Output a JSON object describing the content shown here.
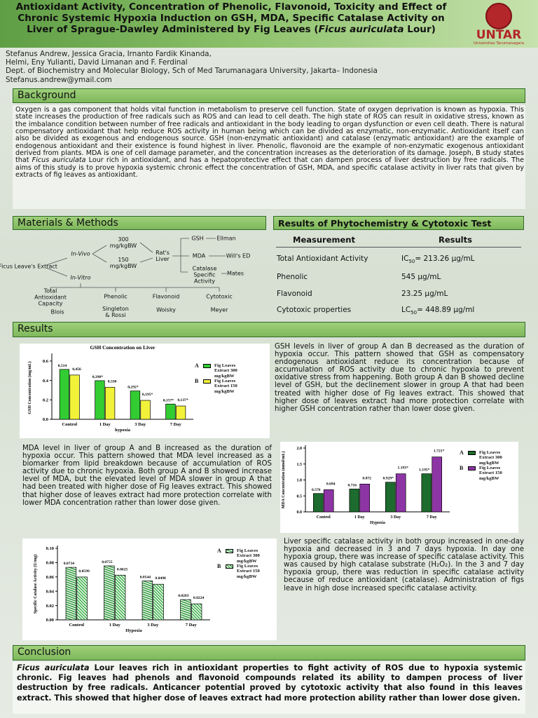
{
  "header": {
    "title_start": "Antioxidant Activity, Concentration of Phenolic, Flavonoid, Toxicity and Effect of Chronic Systemic Hypoxia Induction on GSH, MDA, Specific Catalase Activity on Liver of Sprague-Dawley Administered by Fig Leaves (",
    "title_italic": "Ficus auriculata",
    "title_end": " Lour)",
    "logo_name": "UNTAR",
    "logo_sub": "Universitas Tarumanagara"
  },
  "authors": [
    "Stefanus Andrew, Jessica Gracia, Irnanto Fardik Kinanda,",
    "Helmi, Eny Yulianti, David Limanan and F. Ferdinal",
    "Dept. of Biochemistry and Molecular Biology, Sch of Med Tarumanagara University, Jakarta– Indonesia",
    "Stefanus.andrew@ymail.com"
  ],
  "background": {
    "heading": "Background",
    "text_1": "Oxygen is a gas component that holds vital function in metabolism to preserve cell function. State of oxygen deprivation is known as hypoxia. This state increases the production of free radicals such as ROS and can lead to cell death. The high state of ROS can result in oxidative stress, known as the imbalance condition between number of free radicals and antioxidant in the body leading to organ dysfunction or even cell death. There is natural compensatory antioxidant that help reduce ROS activity in human being which can be divided as enzymatic, non-enzymatic. Antioxidant itself can also be divided as exogenous and endogenous source. GSH (non-enzymatic antioxidant) and catalase (enzymatic antioxidant) are the example of endogenous antioxidant and their existence is found highest in liver. Phenolic, flavonoid are the example of non-enzymatic exogenous antioxidant derived from plants. MDA is one of cell damage parameter, and the concentration increases as the deterioration of its damage. Joseph, B study states that ",
    "italic": "Ficus auriculata",
    "text_2": " Lour rich in antioxidant, and has a hepatoprotective effect that can dampen process of liver destruction by free radicals. The aims of this study is to prove hypoxia systemic chronic effect the concentration of GSH, MDA, and specific catalase activity in liver rats that given by extracts of fig leaves as antioxidant."
  },
  "methods": {
    "heading": "Materials & Methods",
    "nodes": [
      "Ficus Leave's Extract",
      "In-Vivo",
      "In-Vitro",
      "300 mg/kgBW",
      "150 mg/kgBW",
      "Rat's Liver",
      "GSH",
      "Ellman",
      "MDA",
      "Will's ED",
      "Catalase Specific Activity",
      "Mates",
      "Total Antioxidant Capacity",
      "Phenolic",
      "Flavonoid",
      "Cytotoxic",
      "Blois",
      "Singleton & Rossi",
      "Woisky",
      "Meyer"
    ]
  },
  "phytochemistry": {
    "heading": "Results of Phytochemistry & Cytotoxic Test",
    "columns": [
      "Measurement",
      "Results"
    ],
    "rows": [
      {
        "measurement": "Total Antioxidant Activity",
        "result": "IC",
        "sub": "50",
        "result_end": "= 213.26 µg/mL"
      },
      {
        "measurement": "Phenolic",
        "result": "545 µg/mL"
      },
      {
        "measurement": "Flavonoid",
        "result": "23.25 µg/mL"
      },
      {
        "measurement": "Cytotoxic properties",
        "result": "LC",
        "sub": "50",
        "result_end": "= 448.89 µg/ml"
      }
    ]
  },
  "results": {
    "heading": "Results",
    "texts": [
      "GSH levels in liver of group A dan B decreased as the duration of hypoxia occur. This pattern showed that GSH as compensatory endogenous antioxidant reduce its concentration because of accumulation of ROS activity due to chronic hypoxia to prevent oxidative stress from happening. Both group A dan B showed decline level of GSH, but the declinement slower in group A that had been treated with higher dose of Fig leaves extract. This showed that higher dose of leaves extract had more protection correlate with higher GSH concentration rather than lower dose given.",
      "MDA level in liver of group A and B increased as the duration of hypoxia occur. This pattern showed that MDA level increased as a biomarker from lipid breakdown because of accumulation of ROS activity due to chronic hypoxia. Both group A and B showed increase level of MDA, but the elevated level of MDA slower in group A that had been treated with higher dose of Fig leaves extract. This showed that higher dose of leaves extract had more protection correlate with lower MDA concentration rather than lower dose given.",
      "Liver specific catalase activity in both group increased in one-day hypoxia and decreased in 3 and 7 days hypoxia. In day one hypoxia group, there was increase of specific catalase activity. This was caused by high catalase substrate (H₂O₂). In the 3 and 7 day hypoxia group, there was reduction in specific catalase activity because of reduce antioxidant (catalase). Administration of figs leave in high dose increased specific catalase activity."
    ],
    "charts": [
      {
        "type": "bar",
        "title": "GSH Concentration on Liver",
        "y_label": "GSH Concentration (mg/mL)",
        "x_label": "hypoxia",
        "categories": [
          "Control",
          "1 Day",
          "3 Day",
          "7 Day"
        ],
        "ylim": [
          0,
          0.65
        ],
        "yticks": [
          {
            "value": 0,
            "label": "0.0"
          },
          0.2,
          0.4,
          0.6
        ],
        "legend_keys": [
          "A",
          "B"
        ],
        "series": [
          {
            "name": "Fig Leaves Extract 300 mg/kgBW",
            "color": "#33cc33",
            "values": [
              0.514,
              0.398,
              0.292,
              0.157
            ],
            "value_labels": [
              "0,514",
              "0,398*",
              "0,292*",
              "0,157*"
            ]
          },
          {
            "name": "Fig Leaves Extract 150 mg/kgBW",
            "color": "#f2f23a",
            "values": [
              0.456,
              0.33,
              0.195,
              0.137
            ],
            "value_labels": [
              "0,456",
              "0,330",
              "0,195*",
              "0,137*"
            ]
          }
        ]
      },
      {
        "type": "bar",
        "y_label": "MDA Concentration (nmol/mL)",
        "x_label": "Hypoxia",
        "categories": [
          "Control",
          "1 Day",
          "3 Day",
          "7 Day"
        ],
        "ylim": [
          0,
          2.0
        ],
        "yticks": [
          {
            "value": 0,
            "label": "0.0"
          },
          0.5,
          {
            "value": 1,
            "label": "1.0"
          },
          1.5,
          {
            "value": 2,
            "label": "2.0"
          }
        ],
        "legend_keys": [
          "A",
          "B"
        ],
        "series": [
          {
            "name": "Fig Leaves Extract 300 mg/kgBW",
            "color": "#1d6b2e",
            "values": [
              0.576,
              0.716,
              0.929,
              1.195
            ],
            "value_labels": [
              "0.576",
              "0.716",
              "0.929*",
              "1.195*"
            ]
          },
          {
            "name": "Fig Leaves Extract 150 mg/kgBW",
            "color": "#8e35a6",
            "values": [
              0.694,
              0.872,
              1.193,
              1.721
            ],
            "value_labels": [
              "0.694",
              "0.872",
              "1.193*",
              "1.721*"
            ]
          }
        ]
      },
      {
        "type": "bar",
        "y_label": "Specific Catalase Activity (U/mg)",
        "x_label": "Hypoxia",
        "categories": [
          "Control",
          "1 Day",
          "3 Day",
          "7 Day"
        ],
        "ylim": [
          0,
          0.1
        ],
        "yticks": [
          {
            "value": 0,
            "label": "0.00"
          },
          0.02,
          0.04,
          0.06,
          0.08,
          {
            "value": 0.1,
            "label": "0.10"
          }
        ],
        "legend_keys": [
          "A",
          "B"
        ],
        "hatched": true,
        "series": [
          {
            "name": "Fig Leaves Extract 300 mg/kgBW",
            "color": "#2f9a3c",
            "values": [
              0.0734,
              0.0755,
              0.0544,
              0.0283
            ]
          },
          {
            "name": "Fig Leaves Extract 150 mg/kgBW",
            "color": "#3fb24c",
            "values": [
              0.0599,
              0.0625,
              0.0498,
              0.0224
            ]
          }
        ]
      }
    ]
  },
  "conclusion": {
    "heading": "Conclusion",
    "italic": "Ficus auriculata",
    "text": " Lour leaves rich in antioxidant properties to fight activity of ROS due to hypoxia systemic chronic. Fig leaves had phenols and flavonoid compounds related its ability to dampen process of liver destruction by free radicals. Anticancer potential proved by cytotoxic activity that also found in this leaves extract. This showed that higher dose of leaves extract had more protection ability rather than lower dose given."
  }
}
